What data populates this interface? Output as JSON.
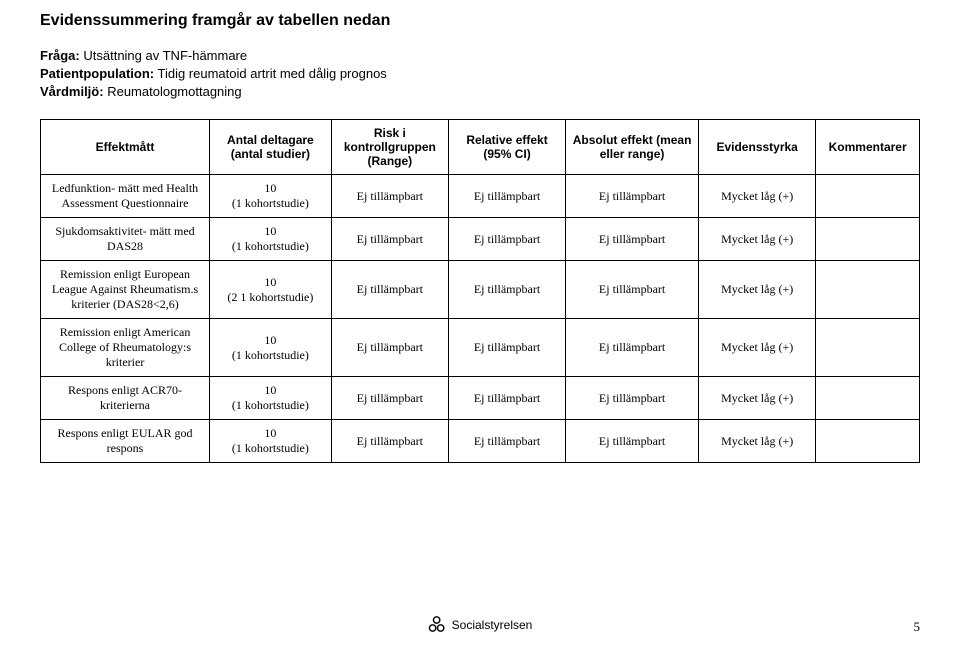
{
  "title": "Evidenssummering framgår av tabellen nedan",
  "intro": {
    "fraga_label": "Fråga:",
    "fraga_value": "Utsättning av TNF-hämmare",
    "patient_label": "Patientpopulation:",
    "patient_value": "Tidig reumatoid artrit med dålig prognos",
    "vardmiljo_label": "Vårdmiljö:",
    "vardmiljo_value": "Reumatologmottagning"
  },
  "headers": {
    "c0": "Effektmått",
    "c1": "Antal deltagare (antal studier)",
    "c2": "Risk i kontrollgruppen (Range)",
    "c3": "Relative effekt (95% CI)",
    "c4": "Absolut effekt (mean eller range)",
    "c5": "Evidensstyrka",
    "c6": "Kommentarer"
  },
  "cell_common": {
    "ej": "Ej tillämpbart",
    "low": "Mycket låg (+)"
  },
  "rows": [
    {
      "effekt": "Ledfunktion- mätt med Health Assessment Questionnaire",
      "n_top": "10",
      "n_bot": "(1 kohortstudie)"
    },
    {
      "effekt": "Sjukdomsaktivitet- mätt med DAS28",
      "n_top": "10",
      "n_bot": "(1 kohortstudie)"
    },
    {
      "effekt": "Remission enligt European League Against Rheumatism.s kriterier (DAS28<2,6)",
      "n_top": "10",
      "n_bot": "(2 1 kohortstudie)"
    },
    {
      "effekt": "Remission enligt American College of Rheumatology:s kriterier",
      "n_top": "10",
      "n_bot": "(1 kohortstudie)"
    },
    {
      "effekt": "Respons enligt ACR70-kriterierna",
      "n_top": "10",
      "n_bot": "(1 kohortstudie)"
    },
    {
      "effekt": "Respons enligt EULAR god respons",
      "n_top": "10",
      "n_bot": "(1 kohortstudie)"
    }
  ],
  "footer": {
    "org": "Socialstyrelsen",
    "page": "5"
  },
  "colors": {
    "text": "#000000",
    "bg": "#ffffff",
    "border": "#000000"
  }
}
